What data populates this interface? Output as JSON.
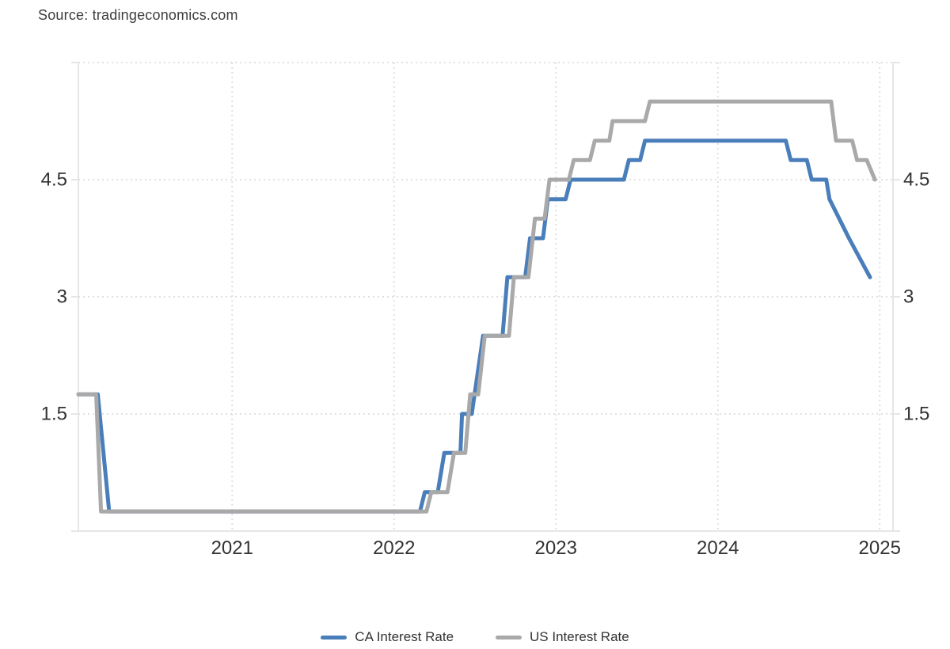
{
  "source": {
    "text": "Source: tradingeconomics.com"
  },
  "legend": {
    "items": [
      {
        "label": "CA Interest Rate",
        "color": "#4a7ebb"
      },
      {
        "label": "US Interest Rate",
        "color": "#a9a9a9"
      }
    ]
  },
  "colors": {
    "axis_line": "#e6e6e6",
    "grid_dotted": "#e0e0e0",
    "tick_label": "#333333",
    "background": "#ffffff"
  },
  "chart_data": {
    "type": "line",
    "title": "",
    "xlabel": "",
    "ylabel": "",
    "x_unit": "year",
    "y_unit": "percent",
    "xlim": [
      2020.05,
      2025.082
    ],
    "ylim": [
      0,
      6
    ],
    "grid": "dotted",
    "legend_position": "bottom",
    "x_ticks": [
      {
        "value": 2021,
        "label": "2021"
      },
      {
        "value": 2022,
        "label": "2022"
      },
      {
        "value": 2023,
        "label": "2023"
      },
      {
        "value": 2024,
        "label": "2024"
      },
      {
        "value": 2025,
        "label": "2025"
      }
    ],
    "y_ticks": [
      {
        "value": 0,
        "label": "",
        "grid": false
      },
      {
        "value": 1.5,
        "label": "1.5",
        "grid": true
      },
      {
        "value": 3,
        "label": "3",
        "grid": true
      },
      {
        "value": 4.5,
        "label": "4.5",
        "grid": true
      },
      {
        "value": 6,
        "label": "",
        "grid": true
      }
    ],
    "series": [
      {
        "name": "CA Interest Rate",
        "color": "#4a7ebb",
        "points": [
          [
            2020.05,
            1.75
          ],
          [
            2020.17,
            1.75
          ],
          [
            2020.24,
            0.25
          ],
          [
            2022.16,
            0.25
          ],
          [
            2022.19,
            0.5
          ],
          [
            2022.27,
            0.5
          ],
          [
            2022.31,
            1.0
          ],
          [
            2022.41,
            1.0
          ],
          [
            2022.42,
            1.5
          ],
          [
            2022.48,
            1.5
          ],
          [
            2022.55,
            2.5
          ],
          [
            2022.67,
            2.5
          ],
          [
            2022.7,
            3.25
          ],
          [
            2022.81,
            3.25
          ],
          [
            2022.84,
            3.75
          ],
          [
            2022.92,
            3.75
          ],
          [
            2022.95,
            4.25
          ],
          [
            2023.06,
            4.25
          ],
          [
            2023.09,
            4.5
          ],
          [
            2023.42,
            4.5
          ],
          [
            2023.45,
            4.75
          ],
          [
            2023.52,
            4.75
          ],
          [
            2023.55,
            5.0
          ],
          [
            2024.42,
            5.0
          ],
          [
            2024.45,
            4.75
          ],
          [
            2024.55,
            4.75
          ],
          [
            2024.58,
            4.5
          ],
          [
            2024.67,
            4.5
          ],
          [
            2024.69,
            4.25
          ],
          [
            2024.81,
            3.75
          ],
          [
            2024.94,
            3.25
          ]
        ]
      },
      {
        "name": "US Interest Rate",
        "color": "#a9a9a9",
        "points": [
          [
            2020.05,
            1.75
          ],
          [
            2020.16,
            1.75
          ],
          [
            2020.19,
            0.25
          ],
          [
            2022.2,
            0.25
          ],
          [
            2022.23,
            0.5
          ],
          [
            2022.33,
            0.5
          ],
          [
            2022.37,
            1.0
          ],
          [
            2022.44,
            1.0
          ],
          [
            2022.47,
            1.75
          ],
          [
            2022.52,
            1.75
          ],
          [
            2022.56,
            2.5
          ],
          [
            2022.71,
            2.5
          ],
          [
            2022.74,
            3.25
          ],
          [
            2022.83,
            3.25
          ],
          [
            2022.87,
            4.0
          ],
          [
            2022.93,
            4.0
          ],
          [
            2022.96,
            4.5
          ],
          [
            2023.08,
            4.5
          ],
          [
            2023.11,
            4.75
          ],
          [
            2023.21,
            4.75
          ],
          [
            2023.24,
            5.0
          ],
          [
            2023.33,
            5.0
          ],
          [
            2023.35,
            5.25
          ],
          [
            2023.55,
            5.25
          ],
          [
            2023.58,
            5.5
          ],
          [
            2024.7,
            5.5
          ],
          [
            2024.73,
            5.0
          ],
          [
            2024.83,
            5.0
          ],
          [
            2024.86,
            4.75
          ],
          [
            2024.92,
            4.75
          ],
          [
            2024.97,
            4.5
          ]
        ]
      }
    ]
  }
}
